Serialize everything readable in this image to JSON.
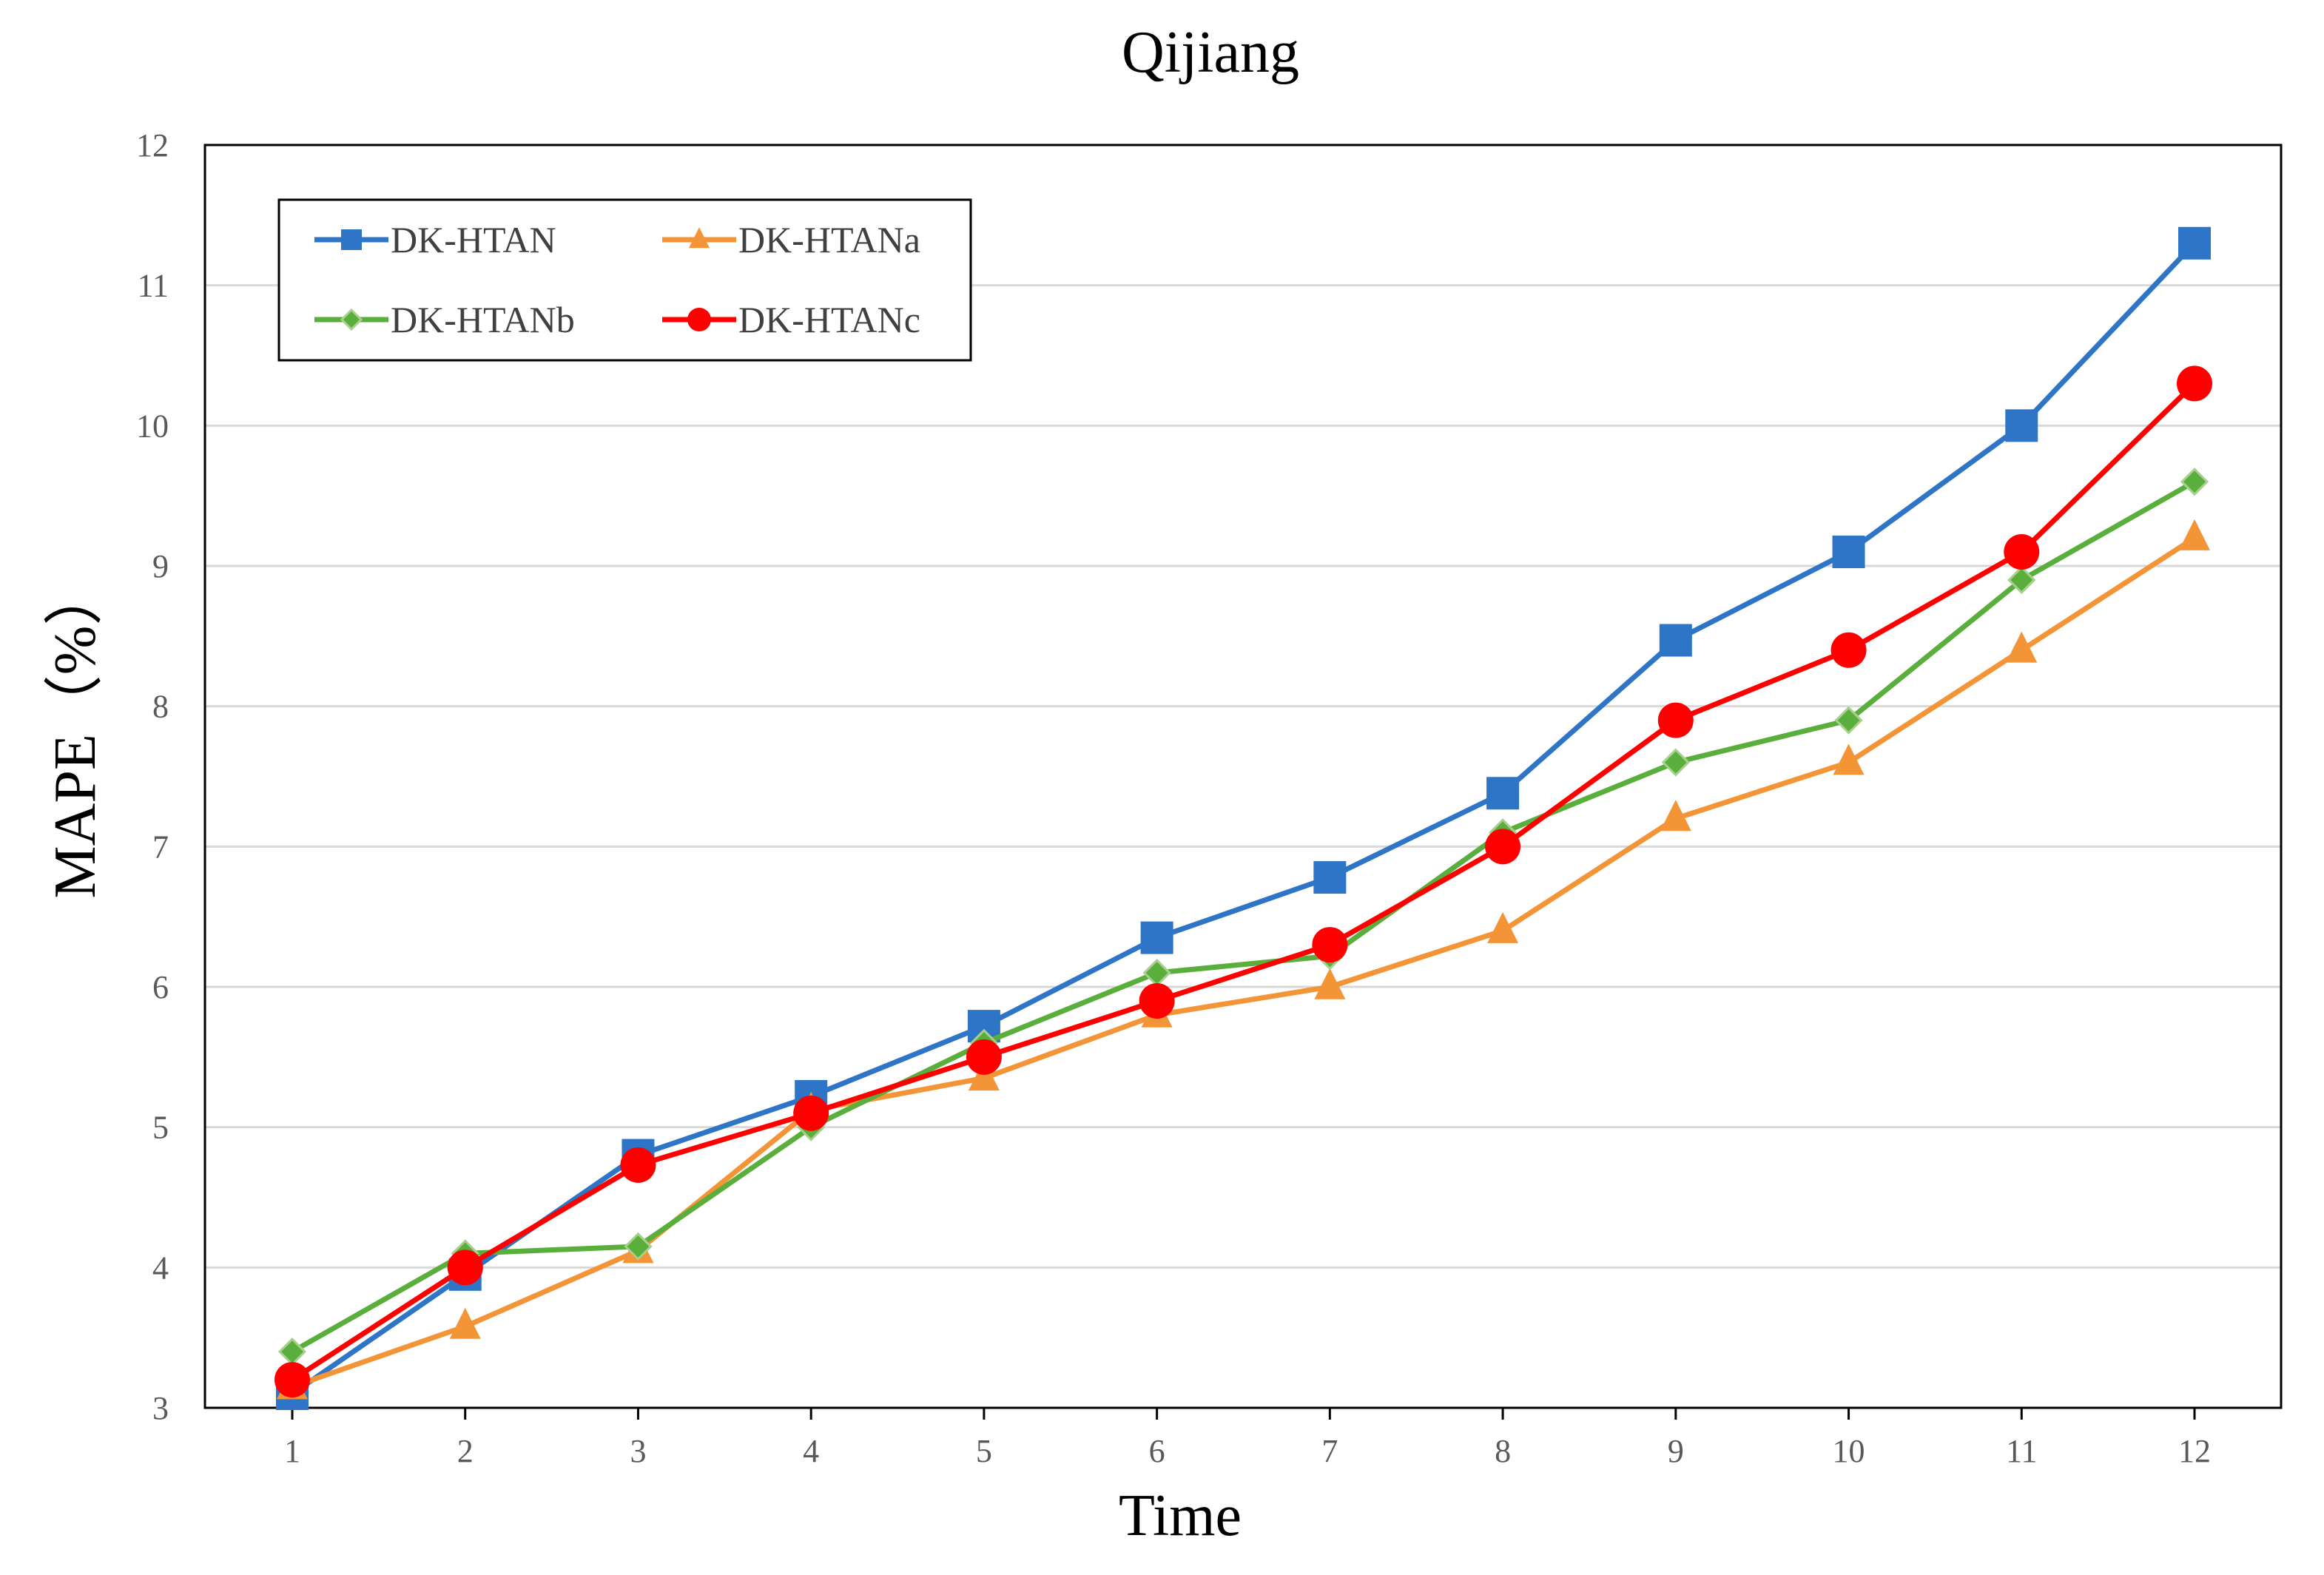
{
  "chart_data": {
    "type": "line",
    "title": "Qijiang",
    "xlabel": "Time",
    "ylabel": "MAPE（%）",
    "x": [
      1,
      2,
      3,
      4,
      5,
      6,
      7,
      8,
      9,
      10,
      11,
      12
    ],
    "xticks": [
      "1",
      "2",
      "3",
      "4",
      "5",
      "6",
      "7",
      "8",
      "9",
      "10",
      "11",
      "12"
    ],
    "ylim": [
      3,
      12
    ],
    "yticks": [
      "3",
      "4",
      "5",
      "6",
      "7",
      "8",
      "9",
      "10",
      "11",
      "12"
    ],
    "grid": true,
    "legend_position": "top-left",
    "series": [
      {
        "name": "DK-HTAN",
        "color": "#2E75C8",
        "marker": "square",
        "values": [
          3.1,
          3.95,
          4.8,
          5.22,
          5.72,
          6.35,
          6.78,
          7.38,
          8.47,
          9.1,
          10.0,
          11.3
        ]
      },
      {
        "name": "DK-HTANa",
        "color": "#F39436",
        "marker": "triangle",
        "values": [
          3.15,
          3.58,
          4.12,
          5.12,
          5.35,
          5.8,
          6.0,
          6.4,
          7.2,
          7.6,
          8.4,
          9.2
        ]
      },
      {
        "name": "DK-HTANb",
        "color": "#5AAE3C",
        "marker": "diamond",
        "values": [
          3.4,
          4.1,
          4.15,
          5.0,
          5.6,
          6.1,
          6.22,
          7.1,
          7.6,
          7.9,
          8.9,
          9.6
        ]
      },
      {
        "name": "DK-HTANc",
        "color": "#FF0000",
        "marker": "circle",
        "values": [
          3.2,
          4.0,
          4.73,
          5.1,
          5.5,
          5.9,
          6.3,
          7.0,
          7.9,
          8.4,
          9.1,
          10.3
        ]
      }
    ]
  }
}
